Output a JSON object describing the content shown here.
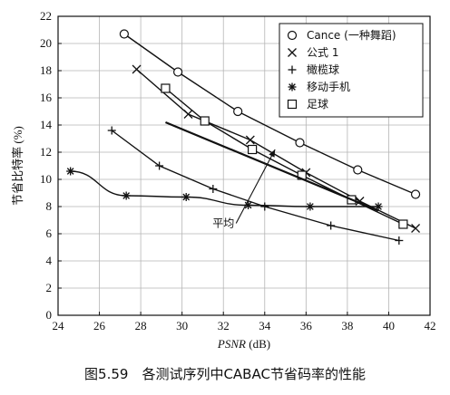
{
  "caption": "图5.59　各测试序列中CABAC节省码率的性能",
  "chart_data": {
    "type": "line",
    "title": "",
    "xlabel": "PSNR (dB)",
    "xlabel_italic": "PSNR",
    "xlabel_unit": "(dB)",
    "ylabel": "节省比特率 (%)",
    "xlim": [
      24,
      42
    ],
    "ylim": [
      0,
      22
    ],
    "xticks": [
      24,
      26,
      28,
      30,
      32,
      34,
      36,
      38,
      40,
      42
    ],
    "yticks": [
      0,
      2,
      4,
      6,
      8,
      10,
      12,
      14,
      16,
      18,
      20,
      22
    ],
    "grid": true,
    "legend_position": "top-right",
    "series": [
      {
        "name": "Cance (一种舞蹈)",
        "marker": "circle",
        "x": [
          27.2,
          29.8,
          32.7,
          35.7,
          38.5,
          41.3
        ],
        "y": [
          20.7,
          17.9,
          15.0,
          12.7,
          10.7,
          8.9
        ]
      },
      {
        "name": "公式 1",
        "marker": "x",
        "x": [
          27.8,
          30.3,
          33.3,
          36.0,
          38.6,
          41.3
        ],
        "y": [
          18.1,
          14.8,
          12.9,
          10.5,
          8.4,
          6.4
        ]
      },
      {
        "name": "橄榄球",
        "marker": "plus",
        "x": [
          26.6,
          28.9,
          31.5,
          34.0,
          37.2,
          40.5
        ],
        "y": [
          13.6,
          11.0,
          9.3,
          8.0,
          6.6,
          5.5
        ]
      },
      {
        "name": "移动手机",
        "marker": "star",
        "x": [
          24.6,
          27.3,
          30.2,
          33.2,
          36.2,
          39.5
        ],
        "y": [
          10.6,
          8.8,
          8.7,
          8.1,
          8.0,
          8.0
        ]
      },
      {
        "name": "足球",
        "marker": "square",
        "x": [
          29.2,
          31.1,
          33.4,
          35.8,
          38.2,
          40.7
        ],
        "y": [
          16.7,
          14.3,
          12.2,
          10.3,
          8.5,
          6.7
        ]
      }
    ],
    "average_line": {
      "x": [
        29.2,
        39.5
      ],
      "y": [
        14.2,
        7.7
      ]
    },
    "annotation": {
      "text": "平均",
      "x": 32.0,
      "y": 6.5,
      "arrow_to": [
        34.5,
        12.2
      ]
    }
  }
}
